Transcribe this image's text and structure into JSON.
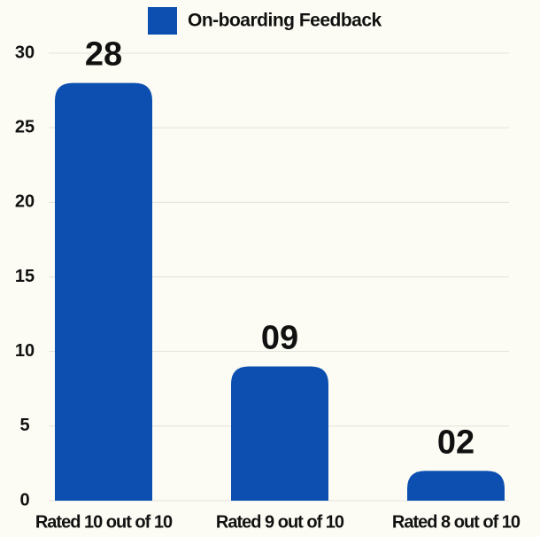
{
  "chart_data": {
    "type": "bar",
    "legend": "On-boarding Feedback",
    "categories": [
      "Rated 10 out of 10",
      "Rated 9 out of 10",
      "Rated 8 out of 10"
    ],
    "values": [
      28,
      9,
      2
    ],
    "value_labels": [
      "28",
      "09",
      "02"
    ],
    "color": "#0c4fb1",
    "ylim": [
      0,
      30
    ],
    "yticks": [
      0,
      5,
      10,
      15,
      20,
      25,
      30
    ],
    "grid": true,
    "legend_position": "top"
  }
}
